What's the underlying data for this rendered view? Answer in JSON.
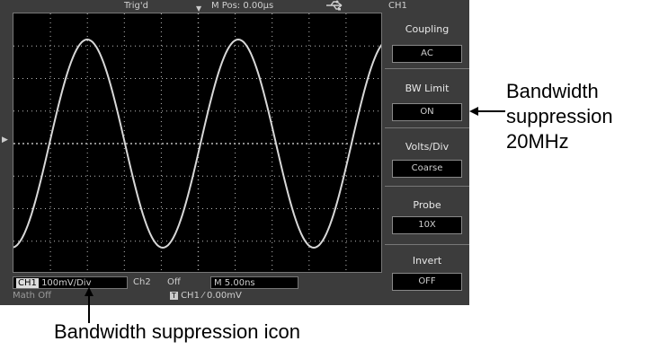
{
  "topbar": {
    "trig_label": "Trig'd",
    "mpos_label": "M Pos: 0.00μs",
    "usb_icon": "usb-icon",
    "channel_label": "CH1"
  },
  "menu": {
    "items": [
      {
        "title": "Coupling",
        "value": "AC"
      },
      {
        "title": "BW Limit",
        "value": "ON"
      },
      {
        "title": "Volts/Div",
        "value": "Coarse"
      },
      {
        "title": "Probe",
        "value": "10X"
      },
      {
        "title": "Invert",
        "value": "OFF"
      }
    ]
  },
  "status": {
    "ch1_tag": "CH1",
    "ch1_scale": "100mV/Div",
    "ch2_label": "Ch2",
    "ch2_state": "Off",
    "timebase": "M 5.00ns",
    "math_label": "Math Off",
    "trig_source": "CH1",
    "trig_level": "0.00mV"
  },
  "annotations": {
    "side_line1": "Bandwidth",
    "side_line2": "suppression",
    "side_line3": "20MHz",
    "bottom_label": "Bandwidth suppression icon"
  },
  "colors": {
    "bezel": "#3c3c3c",
    "screen": "#000000",
    "trace": "#d8d8d8",
    "grid": "#bdbdbd"
  }
}
